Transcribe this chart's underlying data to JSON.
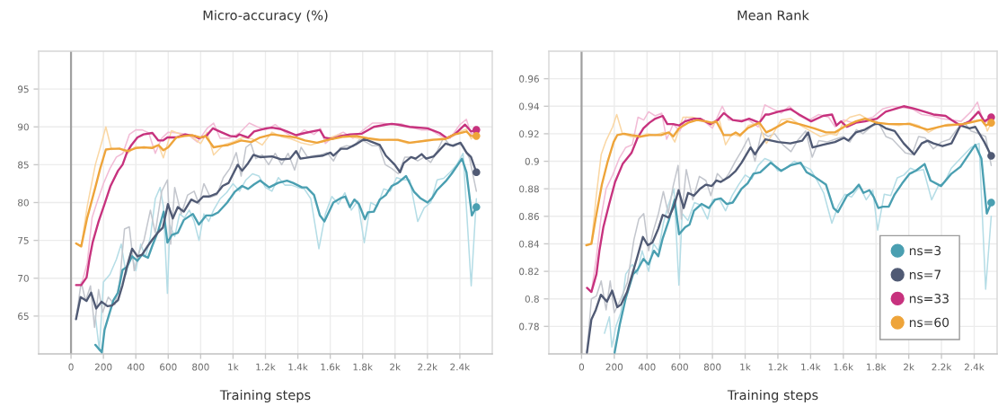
{
  "chart_data": [
    {
      "type": "line",
      "title": "Micro-accuracy (%)",
      "xlabel": "Training steps",
      "xlim": [
        -200,
        2600
      ],
      "xticks": [
        0,
        200,
        400,
        600,
        800,
        {
          "value": 1000,
          "label": "1k"
        },
        {
          "value": 1200,
          "label": "1.2k"
        },
        {
          "value": 1400,
          "label": "1.4k"
        },
        {
          "value": 1600,
          "label": "1.6k"
        },
        {
          "value": 1800,
          "label": "1.8k"
        },
        {
          "value": 2000,
          "label": "2k"
        },
        {
          "value": 2200,
          "label": "2.2k"
        },
        {
          "value": 2400,
          "label": "2.4k"
        }
      ],
      "ylim": [
        60,
        100
      ],
      "yticks": [
        65,
        70,
        75,
        80,
        85,
        90,
        95
      ],
      "grid": true,
      "ref_lines": [
        {
          "axis": "x",
          "value": 0,
          "color": "#a0a0a0"
        }
      ],
      "series": [
        {
          "color": "#b5dde6",
          "x": [
            150,
            175,
            200,
            240,
            280,
            310,
            340,
            370,
            400,
            430,
            460,
            490,
            520,
            550,
            570,
            595,
            610,
            640,
            670,
            700,
            730,
            760,
            790,
            820,
            850,
            880,
            920,
            960,
            1000,
            1040,
            1080,
            1120,
            1160,
            1200,
            1240,
            1280,
            1320,
            1360,
            1400,
            1440,
            1480,
            1530,
            1570,
            1610,
            1650,
            1690,
            1730,
            1770,
            1810,
            1850,
            1890,
            1930,
            1970,
            2010,
            2050,
            2090,
            2140,
            2180,
            2220,
            2260,
            2300,
            2340,
            2380,
            2420,
            2470,
            2502
          ],
          "values": [
            65.0,
            60.5,
            69.5,
            70.5,
            72.5,
            74.5,
            70.5,
            73.5,
            71.0,
            74.5,
            72.8,
            75.5,
            80.5,
            82.0,
            79.5,
            68.0,
            77.0,
            75.5,
            78.5,
            78.0,
            79.0,
            77.5,
            75.0,
            78.5,
            77.5,
            79.0,
            80.5,
            81.3,
            82.5,
            81.5,
            83.0,
            83.8,
            83.5,
            82.0,
            81.5,
            83.3,
            82.3,
            82.3,
            82.0,
            81.8,
            80.5,
            73.9,
            78.5,
            80.8,
            79.8,
            81.3,
            79.0,
            80.2,
            74.7,
            80.0,
            79.5,
            81.8,
            81.5,
            83.3,
            83.0,
            83.0,
            77.5,
            79.3,
            80.0,
            83.0,
            83.2,
            84.0,
            85.0,
            86.5,
            69.0,
            80.5
          ]
        },
        {
          "color": "#c3c6cd",
          "x": [
            31,
            63,
            90,
            120,
            145,
            170,
            195,
            230,
            270,
            300,
            330,
            360,
            390,
            420,
            450,
            490,
            520,
            560,
            595,
            615,
            640,
            680,
            720,
            760,
            790,
            820,
            860,
            900,
            940,
            980,
            1020,
            1050,
            1080,
            1110,
            1140,
            1180,
            1220,
            1260,
            1300,
            1340,
            1380,
            1420,
            1460,
            1500,
            1540,
            1580,
            1620,
            1660,
            1700,
            1740,
            1780,
            1820,
            1860,
            1900,
            1940,
            1980,
            2020,
            2060,
            2100,
            2140,
            2180,
            2220,
            2260,
            2300,
            2340,
            2380,
            2420,
            2460,
            2502
          ],
          "values": [
            64.6,
            69.5,
            67.0,
            69.0,
            63.5,
            68.5,
            65.5,
            67.5,
            66.5,
            69.5,
            76.5,
            76.8,
            71.0,
            73.5,
            75.0,
            79.0,
            76.0,
            81.5,
            83.0,
            74.5,
            82.0,
            78.5,
            81.0,
            81.5,
            79.8,
            82.5,
            80.7,
            81.0,
            83.3,
            84.5,
            86.6,
            83.5,
            87.3,
            87.8,
            85.8,
            86.3,
            85.0,
            86.5,
            85.0,
            86.5,
            84.3,
            87.3,
            86.0,
            86.2,
            86.3,
            86.6,
            85.5,
            87.2,
            87.5,
            87.4,
            88.3,
            88.0,
            87.5,
            87.5,
            85.0,
            84.5,
            83.8,
            86.0,
            86.0,
            85.5,
            86.0,
            85.3,
            86.8,
            88.6,
            87.5,
            87.8,
            87.5,
            85.8,
            81.5
          ]
        },
        {
          "color": "#f2bcd6",
          "x": [
            31,
            63,
            100,
            130,
            160,
            200,
            240,
            280,
            320,
            360,
            400,
            440,
            480,
            520,
            560,
            600,
            660,
            720,
            780,
            840,
            880,
            920,
            980,
            1040,
            1100,
            1150,
            1200,
            1260,
            1320,
            1380,
            1440,
            1500,
            1540,
            1570,
            1620,
            1680,
            1740,
            1800,
            1860,
            1920,
            1980,
            2040,
            2100,
            2160,
            2220,
            2280,
            2340,
            2400,
            2440,
            2470,
            2502
          ],
          "values": [
            69.1,
            69.1,
            72.0,
            78.0,
            80.0,
            82.5,
            84.5,
            86.0,
            86.5,
            89.0,
            89.6,
            89.6,
            89.2,
            86.5,
            88.5,
            89.3,
            89.2,
            89.0,
            88.0,
            89.8,
            90.5,
            88.5,
            88.5,
            89.2,
            90.5,
            90.0,
            89.6,
            90.3,
            89.3,
            88.5,
            89.6,
            89.0,
            89.8,
            87.8,
            88.7,
            89.3,
            88.5,
            89.5,
            90.5,
            90.5,
            90.3,
            90.4,
            89.9,
            89.6,
            89.6,
            88.8,
            88.5,
            90.3,
            91.0,
            89.0,
            89.5
          ]
        },
        {
          "color": "#fad7a4",
          "x": [
            31,
            63,
            100,
            150,
            190,
            215,
            250,
            300,
            350,
            400,
            450,
            500,
            540,
            570,
            620,
            680,
            740,
            800,
            840,
            880,
            940,
            1000,
            1060,
            1120,
            1180,
            1240,
            1300,
            1360,
            1420,
            1480,
            1540,
            1600,
            1660,
            1720,
            1780,
            1840,
            1900,
            1960,
            2020,
            2080,
            2140,
            2200,
            2260,
            2320,
            2380,
            2440,
            2470,
            2502
          ],
          "values": [
            74.6,
            74.2,
            79.5,
            85.0,
            88.0,
            90.0,
            87.0,
            87.2,
            86.5,
            87.4,
            87.2,
            87.4,
            87.6,
            85.9,
            89.5,
            89.0,
            88.8,
            87.8,
            89.3,
            86.3,
            87.6,
            88.0,
            88.6,
            88.4,
            87.6,
            89.3,
            88.7,
            88.4,
            87.9,
            87.6,
            88.0,
            88.6,
            89.0,
            88.7,
            88.5,
            88.3,
            88.2,
            88.3,
            88.2,
            87.8,
            88.0,
            88.3,
            88.4,
            88.6,
            89.2,
            89.7,
            88.4,
            89.0
          ]
        },
        {
          "color": "#4a9fb1",
          "x": [
            150,
            190,
            207,
            235,
            262,
            290,
            318,
            345,
            377,
            410,
            438,
            475,
            502,
            539,
            572,
            595,
            622,
            659,
            696,
            752,
            789,
            835,
            871,
            908,
            964,
            1010,
            1056,
            1093,
            1130,
            1167,
            1223,
            1278,
            1333,
            1370,
            1426,
            1454,
            1500,
            1536,
            1564,
            1619,
            1666,
            1693,
            1721,
            1749,
            1777,
            1814,
            1832,
            1869,
            1906,
            1943,
            1980,
            2017,
            2068,
            2118,
            2155,
            2201,
            2229,
            2257,
            2312,
            2349,
            2413,
            2441,
            2474,
            2502
          ],
          "values": [
            61.2,
            60.2,
            63.2,
            65.2,
            67.1,
            68.1,
            71.1,
            71.5,
            72.9,
            72.3,
            73.1,
            72.7,
            74.3,
            76.3,
            78.8,
            74.7,
            75.7,
            76.0,
            77.7,
            78.5,
            77.1,
            78.3,
            78.3,
            78.7,
            80.0,
            81.4,
            82.2,
            81.8,
            82.4,
            82.9,
            82.0,
            82.6,
            82.9,
            82.6,
            82.0,
            82.0,
            81.0,
            78.3,
            77.5,
            80.0,
            80.6,
            80.8,
            79.4,
            80.4,
            79.8,
            77.8,
            78.7,
            78.8,
            80.4,
            81.0,
            82.2,
            82.6,
            83.5,
            81.4,
            80.6,
            80.0,
            80.6,
            81.6,
            82.8,
            83.8,
            85.8,
            84.0,
            78.3,
            79.4
          ]
        },
        {
          "color": "#505a74",
          "x": [
            31,
            59,
            96,
            124,
            155,
            188,
            225,
            253,
            290,
            318,
            345,
            377,
            410,
            438,
            475,
            502,
            539,
            567,
            598,
            628,
            659,
            696,
            742,
            779,
            816,
            853,
            900,
            936,
            973,
            1029,
            1056,
            1093,
            1126,
            1167,
            1241,
            1296,
            1352,
            1389,
            1416,
            1481,
            1555,
            1601,
            1619,
            1666,
            1703,
            1758,
            1810,
            1869,
            1906,
            1943,
            1998,
            2031,
            2053,
            2099,
            2127,
            2164,
            2192,
            2238,
            2312,
            2358,
            2404,
            2441,
            2469,
            2502
          ],
          "values": [
            64.6,
            67.5,
            67.0,
            68.1,
            66.0,
            66.9,
            66.3,
            66.4,
            67.1,
            69.1,
            71.5,
            73.9,
            72.9,
            73.1,
            74.3,
            75.1,
            76.1,
            76.7,
            79.8,
            77.9,
            79.4,
            78.8,
            80.4,
            80.0,
            80.8,
            80.8,
            81.2,
            82.2,
            82.6,
            85.0,
            84.2,
            85.2,
            86.3,
            86.0,
            86.1,
            85.7,
            85.8,
            86.8,
            85.8,
            86.0,
            86.2,
            86.6,
            86.2,
            87.1,
            87.1,
            87.7,
            88.4,
            87.9,
            87.6,
            86.2,
            85.0,
            84.0,
            85.2,
            86.0,
            85.8,
            86.4,
            85.8,
            86.1,
            87.8,
            87.5,
            87.9,
            86.6,
            86.0,
            84.0
          ]
        },
        {
          "color": "#c7327e",
          "x": [
            31,
            63,
            96,
            115,
            133,
            170,
            207,
            244,
            290,
            318,
            345,
            373,
            410,
            447,
            502,
            539,
            567,
            595,
            650,
            705,
            761,
            789,
            835,
            875,
            927,
            982,
            1019,
            1038,
            1093,
            1130,
            1204,
            1241,
            1296,
            1333,
            1389,
            1444,
            1536,
            1564,
            1610,
            1666,
            1721,
            1795,
            1869,
            1943,
            1980,
            2017,
            2090,
            2201,
            2275,
            2321,
            2367,
            2432,
            2469,
            2502
          ],
          "values": [
            69.1,
            69.1,
            70.1,
            72.7,
            74.7,
            77.5,
            79.8,
            82.2,
            84.2,
            85.0,
            86.6,
            87.6,
            88.6,
            89.0,
            89.2,
            88.2,
            88.2,
            88.6,
            88.6,
            89.0,
            88.8,
            88.5,
            88.8,
            89.8,
            89.3,
            88.8,
            88.7,
            89.0,
            88.6,
            89.4,
            89.8,
            89.9,
            89.7,
            89.4,
            88.9,
            89.2,
            89.6,
            88.6,
            88.4,
            88.8,
            89.0,
            89.1,
            90.0,
            90.3,
            90.4,
            90.3,
            90.0,
            89.8,
            89.2,
            88.5,
            89.0,
            90.3,
            89.4,
            89.6
          ]
        },
        {
          "color": "#eea43a",
          "x": [
            31,
            63,
            100,
            150,
            180,
            215,
            250,
            300,
            350,
            400,
            450,
            500,
            540,
            570,
            600,
            650,
            700,
            750,
            800,
            830,
            880,
            930,
            970,
            1050,
            1112,
            1167,
            1241,
            1315,
            1389,
            1444,
            1518,
            1555,
            1610,
            1684,
            1758,
            1832,
            1906,
            2017,
            2090,
            2164,
            2238,
            2312,
            2367,
            2441,
            2469,
            2502
          ],
          "values": [
            74.6,
            74.2,
            78.0,
            82.0,
            84.5,
            87.0,
            87.1,
            87.1,
            86.8,
            87.2,
            87.3,
            87.2,
            87.6,
            86.9,
            87.3,
            88.6,
            88.8,
            88.9,
            88.6,
            88.8,
            87.3,
            87.5,
            87.6,
            88.2,
            88.0,
            88.6,
            89.0,
            88.8,
            88.6,
            88.2,
            87.9,
            88.1,
            88.4,
            88.7,
            88.8,
            88.5,
            88.3,
            88.3,
            87.9,
            88.1,
            88.3,
            88.4,
            89.0,
            89.4,
            88.8,
            88.8
          ]
        },
        {
          "type": "scatter",
          "marker": "circle",
          "x": [
            2502,
            2502,
            2502,
            2502
          ],
          "values": [
            79.4,
            84.0,
            89.6,
            88.8
          ],
          "colors": [
            "#4a9fb1",
            "#505a74",
            "#c7327e",
            "#eea43a"
          ]
        }
      ]
    },
    {
      "type": "line",
      "title": "Mean Rank",
      "xlabel": "Training steps",
      "xlim": [
        -200,
        2540
      ],
      "xticks": [
        0,
        200,
        400,
        600,
        800,
        {
          "value": 1000,
          "label": "1k"
        },
        {
          "value": 1200,
          "label": "1.2k"
        },
        {
          "value": 1400,
          "label": "1.4k"
        },
        {
          "value": 1600,
          "label": "1.6k"
        },
        {
          "value": 1800,
          "label": "1.8k"
        },
        {
          "value": 2000,
          "label": "2k"
        },
        {
          "value": 2200,
          "label": "2.2k"
        },
        {
          "value": 2400,
          "label": "2.4k"
        }
      ],
      "ylim": [
        0.76,
        0.98
      ],
      "yticks": [
        0.78,
        0.8,
        0.82,
        0.84,
        0.86,
        0.88,
        0.9,
        0.92,
        0.94,
        0.96
      ],
      "grid": true,
      "legend": "bottom right",
      "ref_lines": [
        {
          "axis": "x",
          "value": 0,
          "color": "#a0a0a0"
        }
      ],
      "series": [
        {
          "color": "#b5dde6",
          "x": [
            140,
            170,
            185,
            210,
            240,
            270,
            310,
            340,
            370,
            410,
            440,
            470,
            500,
            530,
            565,
            595,
            615,
            650,
            690,
            730,
            770,
            800,
            840,
            880,
            920,
            960,
            1000,
            1040,
            1080,
            1120,
            1160,
            1200,
            1250,
            1300,
            1350,
            1400,
            1440,
            1480,
            1530,
            1570,
            1610,
            1650,
            1700,
            1740,
            1780,
            1810,
            1850,
            1890,
            1930,
            1970,
            2010,
            2050,
            2090,
            2140,
            2180,
            2220,
            2260,
            2300,
            2340,
            2380,
            2430,
            2470,
            2504
          ],
          "values": [
            0.775,
            0.787,
            0.765,
            0.78,
            0.79,
            0.818,
            0.825,
            0.818,
            0.835,
            0.82,
            0.84,
            0.835,
            0.855,
            0.868,
            0.88,
            0.81,
            0.862,
            0.857,
            0.87,
            0.868,
            0.858,
            0.872,
            0.873,
            0.864,
            0.875,
            0.883,
            0.89,
            0.887,
            0.897,
            0.902,
            0.9,
            0.893,
            0.895,
            0.9,
            0.897,
            0.894,
            0.886,
            0.877,
            0.855,
            0.868,
            0.876,
            0.874,
            0.882,
            0.872,
            0.879,
            0.85,
            0.876,
            0.875,
            0.888,
            0.89,
            0.895,
            0.893,
            0.894,
            0.872,
            0.882,
            0.885,
            0.895,
            0.9,
            0.905,
            0.91,
            0.913,
            0.807,
            0.86
          ]
        },
        {
          "color": "#c3c6cd",
          "x": [
            33,
            60,
            90,
            120,
            150,
            175,
            200,
            240,
            280,
            320,
            350,
            380,
            410,
            440,
            470,
            500,
            530,
            560,
            590,
            610,
            640,
            680,
            720,
            760,
            790,
            830,
            870,
            900,
            940,
            980,
            1020,
            1060,
            1100,
            1140,
            1180,
            1230,
            1280,
            1320,
            1370,
            1410,
            1450,
            1500,
            1550,
            1600,
            1640,
            1680,
            1720,
            1780,
            1820,
            1860,
            1900,
            1940,
            1980,
            2020,
            2060,
            2100,
            2150,
            2200,
            2250,
            2300,
            2340,
            2380,
            2430,
            2470,
            2504
          ],
          "values": [
            0.761,
            0.8,
            0.802,
            0.813,
            0.792,
            0.813,
            0.79,
            0.8,
            0.812,
            0.843,
            0.858,
            0.862,
            0.835,
            0.85,
            0.862,
            0.878,
            0.862,
            0.882,
            0.897,
            0.858,
            0.894,
            0.872,
            0.889,
            0.886,
            0.875,
            0.891,
            0.886,
            0.891,
            0.9,
            0.908,
            0.917,
            0.9,
            0.921,
            0.918,
            0.92,
            0.912,
            0.907,
            0.915,
            0.922,
            0.903,
            0.915,
            0.914,
            0.916,
            0.918,
            0.914,
            0.923,
            0.92,
            0.926,
            0.927,
            0.918,
            0.916,
            0.911,
            0.906,
            0.905,
            0.918,
            0.917,
            0.909,
            0.914,
            0.916,
            0.924,
            0.928,
            0.922,
            0.92,
            0.918,
            0.897
          ]
        },
        {
          "color": "#f2bcd6",
          "x": [
            33,
            60,
            90,
            120,
            150,
            190,
            230,
            270,
            310,
            345,
            380,
            410,
            450,
            490,
            520,
            560,
            600,
            640,
            700,
            760,
            800,
            860,
            900,
            960,
            1020,
            1080,
            1120,
            1170,
            1220,
            1270,
            1330,
            1390,
            1450,
            1510,
            1550,
            1600,
            1660,
            1720,
            1780,
            1840,
            1900,
            1960,
            2020,
            2080,
            2140,
            2200,
            2260,
            2320,
            2380,
            2420,
            2460,
            2504
          ],
          "values": [
            0.808,
            0.805,
            0.83,
            0.86,
            0.88,
            0.89,
            0.902,
            0.91,
            0.912,
            0.932,
            0.93,
            0.936,
            0.933,
            0.935,
            0.916,
            0.927,
            0.922,
            0.932,
            0.931,
            0.928,
            0.924,
            0.94,
            0.93,
            0.93,
            0.93,
            0.925,
            0.941,
            0.938,
            0.935,
            0.94,
            0.933,
            0.93,
            0.934,
            0.932,
            0.925,
            0.93,
            0.928,
            0.93,
            0.932,
            0.938,
            0.94,
            0.939,
            0.938,
            0.934,
            0.933,
            0.931,
            0.93,
            0.929,
            0.936,
            0.943,
            0.927,
            0.932
          ]
        },
        {
          "color": "#fad7a4",
          "x": [
            29,
            60,
            90,
            120,
            150,
            190,
            215,
            250,
            300,
            350,
            400,
            450,
            500,
            540,
            570,
            620,
            680,
            740,
            800,
            840,
            880,
            920,
            970,
            1020,
            1080,
            1130,
            1170,
            1220,
            1280,
            1340,
            1400,
            1460,
            1520,
            1560,
            1600,
            1640,
            1700,
            1760,
            1820,
            1880,
            1940,
            2000,
            2060,
            2120,
            2180,
            2240,
            2300,
            2360,
            2420,
            2460,
            2480,
            2504
          ],
          "values": [
            0.839,
            0.84,
            0.875,
            0.905,
            0.915,
            0.925,
            0.934,
            0.92,
            0.918,
            0.917,
            0.92,
            0.919,
            0.921,
            0.92,
            0.914,
            0.932,
            0.932,
            0.93,
            0.926,
            0.931,
            0.912,
            0.92,
            0.918,
            0.926,
            0.928,
            0.913,
            0.92,
            0.93,
            0.931,
            0.926,
            0.922,
            0.918,
            0.92,
            0.919,
            0.928,
            0.932,
            0.934,
            0.93,
            0.928,
            0.927,
            0.926,
            0.928,
            0.926,
            0.921,
            0.925,
            0.927,
            0.927,
            0.928,
            0.93,
            0.93,
            0.922,
            0.928
          ]
        },
        {
          "name": "ns=3",
          "color": "#4a9fb1",
          "x": [
            202,
            233,
            269,
            315,
            342,
            378,
            409,
            442,
            469,
            496,
            533,
            569,
            596,
            633,
            660,
            687,
            733,
            778,
            815,
            851,
            887,
            924,
            978,
            1015,
            1051,
            1092,
            1156,
            1220,
            1276,
            1339,
            1376,
            1421,
            1494,
            1540,
            1567,
            1622,
            1659,
            1695,
            1723,
            1759,
            1786,
            1814,
            1841,
            1878,
            1914,
            1960,
            2006,
            2042,
            2097,
            2133,
            2197,
            2261,
            2316,
            2407,
            2444,
            2477,
            2504
          ],
          "values": [
            0.761,
            0.781,
            0.8,
            0.818,
            0.821,
            0.829,
            0.825,
            0.835,
            0.831,
            0.844,
            0.857,
            0.872,
            0.847,
            0.852,
            0.854,
            0.864,
            0.869,
            0.866,
            0.872,
            0.873,
            0.869,
            0.87,
            0.88,
            0.884,
            0.891,
            0.892,
            0.899,
            0.893,
            0.897,
            0.899,
            0.892,
            0.889,
            0.883,
            0.866,
            0.863,
            0.875,
            0.878,
            0.883,
            0.877,
            0.879,
            0.874,
            0.866,
            0.867,
            0.867,
            0.876,
            0.884,
            0.891,
            0.893,
            0.898,
            0.886,
            0.882,
            0.891,
            0.896,
            0.912,
            0.902,
            0.862,
            0.87
          ]
        },
        {
          "name": "ns=7",
          "color": "#505a74",
          "x": [
            33,
            60,
            87,
            118,
            155,
            187,
            218,
            242,
            278,
            315,
            342,
            375,
            405,
            433,
            469,
            496,
            533,
            564,
            593,
            624,
            651,
            687,
            724,
            760,
            796,
            824,
            851,
            905,
            942,
            978,
            1033,
            1060,
            1087,
            1124,
            1202,
            1276,
            1312,
            1349,
            1385,
            1412,
            1476,
            1549,
            1604,
            1631,
            1677,
            1732,
            1805,
            1859,
            1914,
            1969,
            2033,
            2079,
            2115,
            2151,
            2206,
            2261,
            2316,
            2371,
            2407,
            2462,
            2504
          ],
          "values": [
            0.761,
            0.785,
            0.792,
            0.803,
            0.798,
            0.806,
            0.794,
            0.796,
            0.805,
            0.82,
            0.831,
            0.845,
            0.839,
            0.841,
            0.851,
            0.861,
            0.859,
            0.867,
            0.879,
            0.866,
            0.877,
            0.875,
            0.88,
            0.883,
            0.882,
            0.886,
            0.885,
            0.889,
            0.893,
            0.899,
            0.91,
            0.905,
            0.91,
            0.916,
            0.914,
            0.913,
            0.914,
            0.915,
            0.921,
            0.91,
            0.912,
            0.914,
            0.917,
            0.915,
            0.921,
            0.923,
            0.928,
            0.924,
            0.922,
            0.913,
            0.905,
            0.913,
            0.915,
            0.913,
            0.911,
            0.913,
            0.926,
            0.924,
            0.925,
            0.914,
            0.904
          ]
        },
        {
          "name": "ns=33",
          "color": "#c7327e",
          "x": [
            33,
            60,
            91,
            109,
            133,
            169,
            205,
            251,
            305,
            342,
            378,
            415,
            451,
            496,
            524,
            560,
            596,
            633,
            687,
            724,
            787,
            833,
            869,
            924,
            978,
            1024,
            1087,
            1124,
            1147,
            1202,
            1276,
            1330,
            1403,
            1476,
            1531,
            1558,
            1586,
            1622,
            1677,
            1732,
            1805,
            1859,
            1969,
            2042,
            2151,
            2225,
            2261,
            2316,
            2371,
            2426,
            2462,
            2504
          ],
          "values": [
            0.808,
            0.805,
            0.818,
            0.835,
            0.852,
            0.869,
            0.885,
            0.898,
            0.906,
            0.917,
            0.924,
            0.928,
            0.931,
            0.933,
            0.927,
            0.927,
            0.926,
            0.929,
            0.931,
            0.931,
            0.927,
            0.93,
            0.935,
            0.93,
            0.929,
            0.931,
            0.928,
            0.934,
            0.934,
            0.936,
            0.938,
            0.934,
            0.929,
            0.933,
            0.934,
            0.926,
            0.929,
            0.925,
            0.928,
            0.929,
            0.931,
            0.936,
            0.94,
            0.938,
            0.934,
            0.933,
            0.93,
            0.926,
            0.929,
            0.936,
            0.929,
            0.932
          ]
        },
        {
          "name": "ns=60",
          "color": "#eea43a",
          "x": [
            29,
            60,
            87,
            124,
            160,
            196,
            218,
            260,
            305,
            360,
            415,
            487,
            533,
            560,
            596,
            651,
            705,
            760,
            796,
            824,
            869,
            915,
            942,
            969,
            1015,
            1087,
            1129,
            1165,
            1257,
            1330,
            1421,
            1494,
            1549,
            1604,
            1677,
            1732,
            1805,
            1878,
            2006,
            2115,
            2225,
            2334,
            2444,
            2471,
            2504
          ],
          "values": [
            0.839,
            0.84,
            0.859,
            0.883,
            0.9,
            0.914,
            0.919,
            0.92,
            0.919,
            0.918,
            0.919,
            0.919,
            0.921,
            0.918,
            0.924,
            0.928,
            0.93,
            0.929,
            0.928,
            0.929,
            0.919,
            0.919,
            0.921,
            0.919,
            0.924,
            0.928,
            0.921,
            0.923,
            0.929,
            0.927,
            0.924,
            0.921,
            0.921,
            0.925,
            0.929,
            0.931,
            0.928,
            0.927,
            0.927,
            0.923,
            0.926,
            0.927,
            0.93,
            0.926,
            0.928
          ]
        },
        {
          "type": "scatter",
          "marker": "circle",
          "x": [
            2504,
            2504,
            2504,
            2504
          ],
          "values": [
            0.87,
            0.904,
            0.932,
            0.928
          ],
          "colors": [
            "#4a9fb1",
            "#505a74",
            "#c7327e",
            "#eea43a"
          ]
        }
      ]
    }
  ]
}
